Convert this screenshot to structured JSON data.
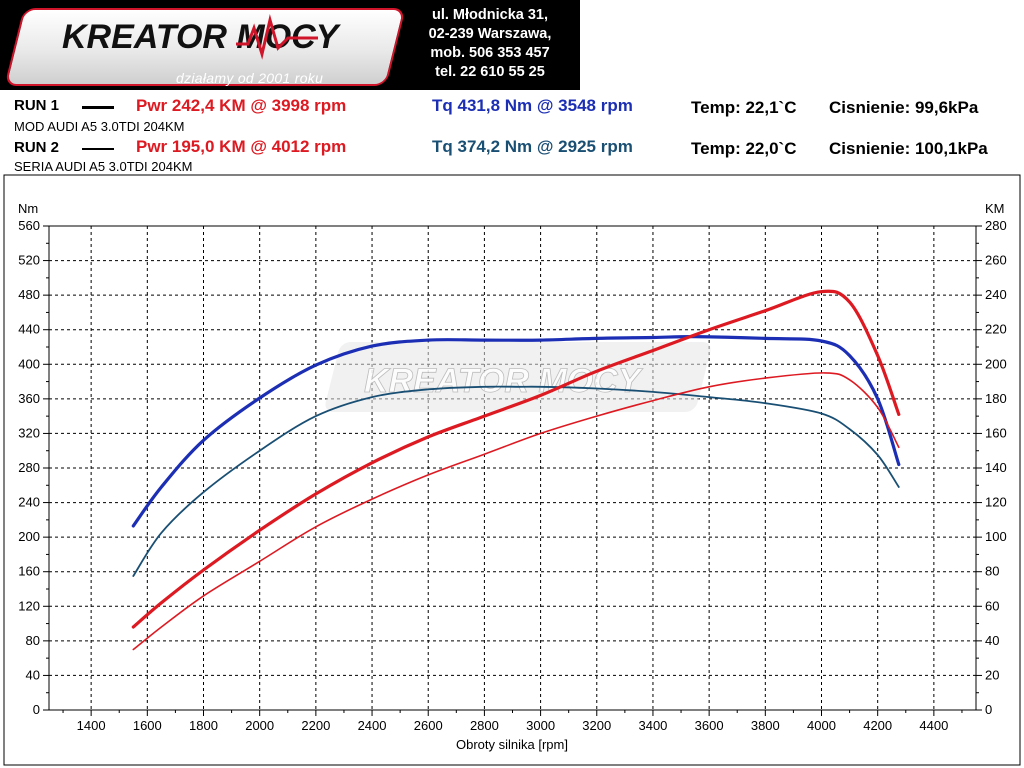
{
  "header": {
    "logo_text": "KREATOR MOCY",
    "tagline": "działamy od 2001 roku",
    "address": [
      "ul. Młodnicka 31,",
      "02-239  Warszawa,",
      "mob.  506 353 457",
      "tel.  22 610 55 25"
    ]
  },
  "runs": [
    {
      "label": "RUN 1",
      "description": "MOD AUDI A5 3.0TDI 204KM",
      "power": "Pwr  242,4 KM @ 3998 rpm",
      "torque": "Tq 431,8 Nm @ 3548 rpm",
      "temp": "Temp: 22,1`C",
      "pressure": "Cisnienie: 99,6kPa"
    },
    {
      "label": "RUN 2",
      "description": "SERIA AUDI A5 3.0TDI 204KM",
      "power": "Pwr  195,0 KM @ 4012 rpm",
      "torque": "Tq 374,2 Nm @ 2925 rpm",
      "temp": "Temp: 22,0`C",
      "pressure": "Cisnienie: 100,1kPa"
    }
  ],
  "colors": {
    "power": "#dd1a22",
    "torque_run1": "#1c2fb4",
    "torque_run2": "#1a4f74",
    "grid": "#000000",
    "logo_red": "#d0142a"
  },
  "chart_data": {
    "type": "line",
    "xlabel": "Obroty silnika [rpm]",
    "ylabel_left": "Nm",
    "ylabel_right": "KM",
    "xlim": [
      1250,
      4550
    ],
    "ylim_left": [
      0,
      560
    ],
    "ylim_right": [
      0,
      280
    ],
    "x_ticks": [
      1400,
      1600,
      1800,
      2000,
      2200,
      2400,
      2600,
      2800,
      3000,
      3200,
      3400,
      3600,
      3800,
      4000,
      4200,
      4400
    ],
    "y_ticks_left": [
      0,
      40,
      80,
      120,
      160,
      200,
      240,
      280,
      320,
      360,
      400,
      440,
      480,
      520,
      560
    ],
    "y_ticks_right": [
      0,
      20,
      40,
      60,
      80,
      100,
      120,
      140,
      160,
      180,
      200,
      220,
      240,
      260,
      280
    ],
    "grid": true,
    "series": [
      {
        "axis": "left",
        "color": "#1c2fb4",
        "width": 3.2,
        "x": [
          1550,
          1650,
          1800,
          2000,
          2200,
          2400,
          2600,
          2800,
          3000,
          3200,
          3400,
          3548,
          3800,
          4000,
          4100,
          4200,
          4275
        ],
        "y": [
          213,
          258,
          312,
          361,
          399,
          421,
          428,
          428,
          428,
          430,
          431,
          432,
          430,
          427,
          410,
          360,
          284
        ]
      },
      {
        "axis": "left",
        "color": "#1a4f74",
        "width": 1.8,
        "x": [
          1550,
          1650,
          1800,
          2000,
          2200,
          2400,
          2600,
          2800,
          2925,
          3000,
          3200,
          3400,
          3600,
          3800,
          4000,
          4100,
          4200,
          4275
        ],
        "y": [
          155,
          205,
          252,
          300,
          340,
          362,
          371,
          374,
          374,
          374,
          372,
          368,
          362,
          355,
          343,
          325,
          295,
          258
        ]
      },
      {
        "axis": "right",
        "color": "#dd1a22",
        "width": 3.2,
        "x": [
          1550,
          1650,
          1800,
          2000,
          2200,
          2400,
          2600,
          2800,
          3000,
          3200,
          3400,
          3600,
          3800,
          3998,
          4100,
          4200,
          4275
        ],
        "y": [
          48,
          62,
          81,
          104,
          125,
          143,
          158,
          170,
          182,
          196,
          208,
          220,
          231,
          242,
          236,
          205,
          171
        ]
      },
      {
        "axis": "right",
        "color": "#dd1a22",
        "width": 1.6,
        "x": [
          1550,
          1650,
          1800,
          2000,
          2200,
          2400,
          2600,
          2800,
          3000,
          3200,
          3400,
          3600,
          3800,
          4012,
          4100,
          4200,
          4275
        ],
        "y": [
          35,
          48,
          66,
          86,
          106,
          122,
          136,
          148,
          160,
          170,
          179,
          187,
          192,
          195,
          191,
          175,
          152
        ]
      }
    ]
  }
}
